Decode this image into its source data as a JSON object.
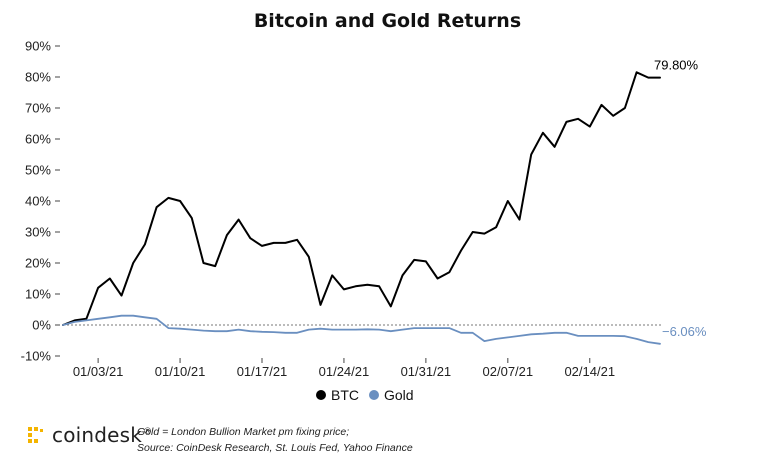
{
  "colors": {
    "btc": "#000000",
    "gold": "#6a8fc0",
    "zero_line": "#777777",
    "axis_text": "#222222"
  },
  "footer": {
    "brand": "coindesk",
    "brand_mark": "®",
    "note1": "Gold = London Bullion Market pm fixing price;",
    "note2": "Source: CoinDesk Research, St. Louis Fed, Yahoo Finance"
  },
  "chart_data": {
    "type": "line",
    "title": "Bitcoin and Gold Returns",
    "ylim": [
      -10,
      90
    ],
    "yticks": [
      -10,
      0,
      10,
      20,
      30,
      40,
      50,
      60,
      70,
      80,
      90
    ],
    "ytick_labels": [
      "-10%",
      "0%",
      "10%",
      "20%",
      "30%",
      "40%",
      "50%",
      "60%",
      "70%",
      "80%",
      "90%"
    ],
    "xticks": [
      "01/03/21",
      "01/10/21",
      "01/17/21",
      "01/24/21",
      "01/31/21",
      "02/07/21",
      "02/14/21"
    ],
    "x": [
      "12/31/20",
      "01/01/21",
      "01/02/21",
      "01/03/21",
      "01/04/21",
      "01/05/21",
      "01/06/21",
      "01/07/21",
      "01/08/21",
      "01/09/21",
      "01/10/21",
      "01/11/21",
      "01/12/21",
      "01/13/21",
      "01/14/21",
      "01/15/21",
      "01/16/21",
      "01/17/21",
      "01/18/21",
      "01/19/21",
      "01/20/21",
      "01/21/21",
      "01/22/21",
      "01/23/21",
      "01/24/21",
      "01/25/21",
      "01/26/21",
      "01/27/21",
      "01/28/21",
      "01/29/21",
      "01/30/21",
      "01/31/21",
      "02/01/21",
      "02/02/21",
      "02/03/21",
      "02/04/21",
      "02/05/21",
      "02/06/21",
      "02/07/21",
      "02/08/21",
      "02/09/21",
      "02/10/21",
      "02/11/21",
      "02/12/21",
      "02/13/21",
      "02/14/21",
      "02/15/21",
      "02/16/21",
      "02/17/21",
      "02/18/21",
      "02/19/21",
      "02/20/21"
    ],
    "series": [
      {
        "name": "BTC",
        "color": "#000000",
        "end_label": "79.80%",
        "values": [
          0,
          1.5,
          2,
          12,
          15,
          9.5,
          20,
          26,
          38,
          41,
          40,
          34.5,
          20,
          19,
          29,
          34,
          28,
          25.5,
          26.5,
          26.5,
          27.5,
          22,
          6.5,
          16,
          11.5,
          12.5,
          13,
          12.5,
          6,
          16,
          21,
          20.5,
          15,
          17,
          24,
          30,
          29.5,
          31.5,
          40,
          34,
          55,
          62,
          57.5,
          65.5,
          66.5,
          64,
          71,
          67.5,
          70,
          81.5,
          79.8,
          79.8
        ]
      },
      {
        "name": "Gold",
        "color": "#6a8fc0",
        "end_label": "−6.06%",
        "values": [
          0,
          1,
          1.5,
          2,
          2.5,
          3,
          3,
          2.5,
          2,
          -1,
          -1.2,
          -1.5,
          -1.8,
          -2,
          -2,
          -1.5,
          -2,
          -2.2,
          -2.3,
          -2.5,
          -2.5,
          -1.5,
          -1.2,
          -1.5,
          -1.5,
          -1.5,
          -1.4,
          -1.5,
          -2,
          -1.5,
          -1,
          -1,
          -1,
          -1,
          -2.5,
          -2.5,
          -5.2,
          -4.5,
          -4,
          -3.5,
          -3,
          -2.8,
          -2.5,
          -2.5,
          -3.5,
          -3.5,
          -3.5,
          -3.5,
          -3.6,
          -4.5,
          -5.5,
          -6.06
        ]
      }
    ],
    "legend": {
      "position": "bottom-center",
      "entries": [
        "BTC",
        "Gold"
      ]
    },
    "zero_line": {
      "value": 0,
      "style": "dashed"
    }
  }
}
